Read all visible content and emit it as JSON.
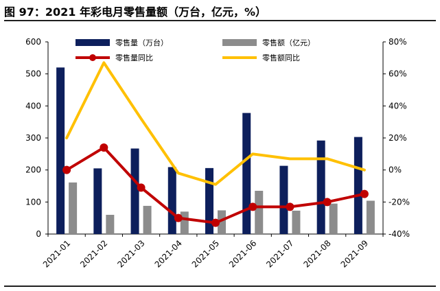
{
  "header": {
    "title": "图 97：2021 年彩电月零售量额（万台，亿元，%）"
  },
  "colors": {
    "volume": "#0d1f5c",
    "value": "#8c8c8c",
    "volume_yoy": "#c00000",
    "value_yoy": "#ffc000"
  },
  "chart_data": {
    "type": "bar",
    "title": "图 97：2021 年彩电月零售量额（万台，亿元，%）",
    "categories": [
      "2021-01",
      "2021-02",
      "2021-03",
      "2021-04",
      "2021-05",
      "2021-06",
      "2021-07",
      "2021-08",
      "2021-09"
    ],
    "y_left": {
      "min": 0,
      "max": 600,
      "ticks": [
        "0",
        "100",
        "200",
        "300",
        "400",
        "500",
        "600"
      ]
    },
    "y_right": {
      "min": -40,
      "max": 80,
      "ticks": [
        "-40%",
        "-20%",
        "0%",
        "20%",
        "40%",
        "60%",
        "80%"
      ]
    },
    "series": [
      {
        "name": "零售量（万台）",
        "type": "bar",
        "axis": "left",
        "values": [
          520,
          205,
          267,
          209,
          206,
          378,
          213,
          292,
          303
        ]
      },
      {
        "name": "零售额（亿元）",
        "type": "bar",
        "axis": "left",
        "values": [
          161,
          60,
          88,
          70,
          74,
          135,
          73,
          95,
          104
        ]
      },
      {
        "name": "零售量同比",
        "type": "line",
        "axis": "right",
        "marker": true,
        "values": [
          0,
          14,
          -11,
          -30,
          -33,
          -23,
          -23,
          -20,
          -15
        ]
      },
      {
        "name": "零售额同比",
        "type": "line",
        "axis": "right",
        "marker": false,
        "values": [
          20,
          67,
          32,
          -2,
          -9,
          10,
          7,
          7,
          0
        ]
      }
    ],
    "legend": {
      "position": "top"
    }
  }
}
